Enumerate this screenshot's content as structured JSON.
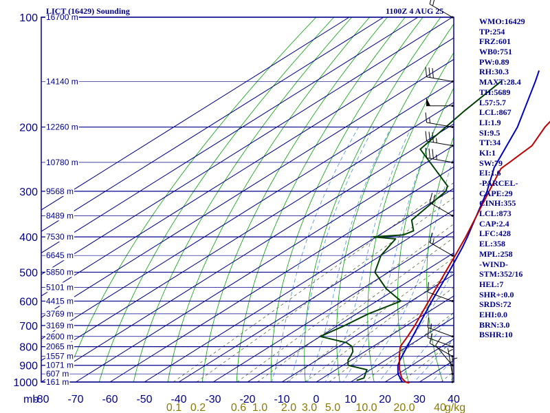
{
  "header": {
    "station": "LICT (16429) Sounding",
    "time": "1100Z  4 AUG 25"
  },
  "colors": {
    "frame": "#00008b",
    "isotherm": "#00008b",
    "dry_adiabat": "#00a000",
    "moist_adiabat": "#4a90d9",
    "mixing_ratio": "#556b2f",
    "temperature": "#c00000",
    "dewpoint": "#004000",
    "parcel": "#0000c0",
    "wind": "#000000",
    "mixing_label": "#8b7a00"
  },
  "chart_data": {
    "type": "line",
    "title": "LICT (16429) Sounding",
    "subtitle": "1100Z  4 AUG 25",
    "y_axis_unit": "mb",
    "x_axis_unit": "°C",
    "y_scale": "log",
    "ylim": [
      100,
      1000
    ],
    "xlim": [
      -80,
      0
    ],
    "pressure_ticks": [
      100,
      200,
      300,
      400,
      500,
      600,
      700,
      800,
      900,
      1000
    ],
    "pressure_tick_labels": [
      "100",
      "200",
      "300",
      "400",
      "500",
      "600",
      "700",
      "800",
      "900",
      "1000"
    ],
    "temperature_ticks": [
      -80,
      -70,
      -60,
      -50,
      -40,
      -30,
      -20,
      -10,
      0,
      10,
      20,
      30,
      40
    ],
    "temperature_tick_labels": [
      "-80",
      "-70",
      "-60",
      "-50",
      "-40",
      "-30",
      "-20",
      "-10",
      "0",
      "10",
      "20",
      "30",
      "40"
    ],
    "mixing_ratio_unit": "g/kg",
    "mixing_ratio_labels": [
      "0.1",
      "0.2",
      "0.6",
      "1.0",
      "2.0",
      "3.0",
      "5.0",
      "10.0",
      "20.0",
      "40"
    ],
    "mixing_ratio_values": [
      0.1,
      0.2,
      0.6,
      1.0,
      2.0,
      3.0,
      5.0,
      10.0,
      20.0,
      40
    ],
    "height_labels": [
      {
        "pressure": 100,
        "label": "16700 m"
      },
      {
        "pressure": 150,
        "label": "14140 m"
      },
      {
        "pressure": 200,
        "label": "12260 m"
      },
      {
        "pressure": 250,
        "label": "10780 m"
      },
      {
        "pressure": 300,
        "label": "9568 m"
      },
      {
        "pressure": 350,
        "label": "8489 m"
      },
      {
        "pressure": 400,
        "label": "7530 m"
      },
      {
        "pressure": 450,
        "label": "6645 m"
      },
      {
        "pressure": 500,
        "label": "5850 m"
      },
      {
        "pressure": 550,
        "label": "5101 m"
      },
      {
        "pressure": 600,
        "label": "4415 m"
      },
      {
        "pressure": 650,
        "label": "3769 m"
      },
      {
        "pressure": 700,
        "label": "3169 m"
      },
      {
        "pressure": 750,
        "label": "2600 m"
      },
      {
        "pressure": 800,
        "label": "2065 m"
      },
      {
        "pressure": 850,
        "label": "1557 m"
      },
      {
        "pressure": 900,
        "label": "1071 m"
      },
      {
        "pressure": 950,
        "label": "607 m"
      },
      {
        "pressure": 1000,
        "label": "161 m"
      }
    ],
    "series": [
      {
        "key": "temperature",
        "points": [
          {
            "p": 1006,
            "t": 27.5
          },
          {
            "p": 1000,
            "t": 26.0
          },
          {
            "p": 975,
            "t": 23.0
          },
          {
            "p": 925,
            "t": 18.5
          },
          {
            "p": 850,
            "t": 12.2
          },
          {
            "p": 800,
            "t": 8.0
          },
          {
            "p": 750,
            "t": 5.4
          },
          {
            "p": 700,
            "t": 2.4
          },
          {
            "p": 600,
            "t": -4.9
          },
          {
            "p": 500,
            "t": -13.5
          },
          {
            "p": 450,
            "t": -18.4
          },
          {
            "p": 400,
            "t": -24.0
          },
          {
            "p": 300,
            "t": -38.4
          },
          {
            "p": 260,
            "t": -45.5
          },
          {
            "p": 250,
            "t": -45.9
          },
          {
            "p": 225,
            "t": -47.1
          },
          {
            "p": 200,
            "t": -52.0
          },
          {
            "p": 175,
            "t": -56.0
          },
          {
            "p": 160,
            "t": -59.8
          },
          {
            "p": 150,
            "t": -63.4
          },
          {
            "p": 130,
            "t": -68.0
          },
          {
            "p": 115,
            "t": -70.5
          },
          {
            "p": 107,
            "t": -68.5
          },
          {
            "p": 100,
            "t": -70.3
          }
        ]
      },
      {
        "key": "dewpoint",
        "points": [
          {
            "p": 990,
            "t": 11.0
          },
          {
            "p": 975,
            "t": 12.0
          },
          {
            "p": 925,
            "t": 9.0
          },
          {
            "p": 900,
            "t": 1.5
          },
          {
            "p": 870,
            "t": -1.0
          },
          {
            "p": 850,
            "t": -2.0
          },
          {
            "p": 825,
            "t": -3.5
          },
          {
            "p": 800,
            "t": -6.0
          },
          {
            "p": 780,
            "t": -9.5
          },
          {
            "p": 750,
            "t": -20.0
          },
          {
            "p": 700,
            "t": -18.0
          },
          {
            "p": 650,
            "t": -16.5
          },
          {
            "p": 600,
            "t": -13.0
          },
          {
            "p": 555,
            "t": -23.0
          },
          {
            "p": 500,
            "t": -34.0
          },
          {
            "p": 450,
            "t": -40.0
          },
          {
            "p": 405,
            "t": -43.5
          },
          {
            "p": 400,
            "t": -51.0
          },
          {
            "p": 395,
            "t": -43.0
          },
          {
            "p": 385,
            "t": -42.0
          },
          {
            "p": 360,
            "t": -47.5
          },
          {
            "p": 300,
            "t": -51.0
          },
          {
            "p": 290,
            "t": -53.0
          },
          {
            "p": 230,
            "t": -78.0
          },
          {
            "p": 180,
            "t": -83.0
          },
          {
            "p": 150,
            "t": -86.0
          }
        ]
      },
      {
        "key": "parcel",
        "points": [
          {
            "p": 1000,
            "t": 25.0
          },
          {
            "p": 950,
            "t": 20.0
          },
          {
            "p": 900,
            "t": 16.0
          },
          {
            "p": 873,
            "t": 14.3
          },
          {
            "p": 800,
            "t": 10.0
          },
          {
            "p": 700,
            "t": 3.5
          },
          {
            "p": 600,
            "t": -4.0
          },
          {
            "p": 500,
            "t": -12.5
          },
          {
            "p": 428,
            "t": -20.0
          },
          {
            "p": 400,
            "t": -23.5
          },
          {
            "p": 358,
            "t": -29.5
          },
          {
            "p": 300,
            "t": -39.0
          },
          {
            "p": 258,
            "t": -48.0
          },
          {
            "p": 200,
            "t": -60.0
          },
          {
            "p": 150,
            "t": -76.0
          },
          {
            "p": 140,
            "t": -80.0
          }
        ]
      }
    ],
    "winds": [
      {
        "p": 1000,
        "dir": 0,
        "kt": 5
      },
      {
        "p": 950,
        "dir": 350,
        "kt": 5
      },
      {
        "p": 900,
        "dir": 320,
        "kt": 10
      },
      {
        "p": 850,
        "dir": 300,
        "kt": 10
      },
      {
        "p": 800,
        "dir": 290,
        "kt": 10
      },
      {
        "p": 750,
        "dir": 290,
        "kt": 15
      },
      {
        "p": 600,
        "dir": 290,
        "kt": 10
      },
      {
        "p": 450,
        "dir": 300,
        "kt": 15
      },
      {
        "p": 350,
        "dir": 300,
        "kt": 20
      },
      {
        "p": 250,
        "dir": 280,
        "kt": 35
      },
      {
        "p": 225,
        "dir": 280,
        "kt": 35
      },
      {
        "p": 200,
        "dir": 280,
        "kt": 15
      },
      {
        "p": 175,
        "dir": 270,
        "kt": 50
      },
      {
        "p": 150,
        "dir": 280,
        "kt": 30
      },
      {
        "p": 100,
        "dir": 300,
        "kt": 20
      }
    ]
  },
  "indices": [
    "WMO:16429",
    "TP:254",
    "FRZ:601",
    "WB0:751",
    "PW:0.89",
    "RH:30.3",
    "MAXT:28.4",
    "TH:5689",
    "L57:5.7",
    "LCL:867",
    "LI:1.9",
    "SI:9.5",
    "TT:34",
    "KI:1",
    "SW:79",
    "EI:1.6",
    "-PARCEL-",
    "CAPE:29",
    "CINH:355",
    "LCL:873",
    "CAP:2.4",
    "LFC:428",
    "EL:358",
    "MPL:258",
    "-WIND-",
    "STM:352/16",
    "HEL:7",
    "SHR+:0.0",
    "SRDS:72",
    "EHI:0.0",
    "BRN:3.0",
    "BSHR:10"
  ]
}
